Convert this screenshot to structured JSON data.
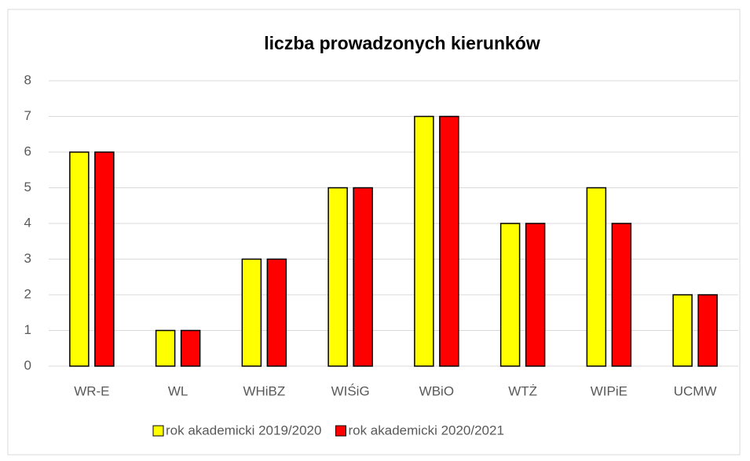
{
  "chart_data": {
    "type": "bar",
    "title": "liczba prowadzonych kierunków",
    "categories": [
      "WR-E",
      "WL",
      "WHiBZ",
      "WIŚiG",
      "WBiO",
      "WTŻ",
      "WIPiE",
      "UCMW"
    ],
    "series": [
      {
        "name": "rok akademicki 2019/2020",
        "color": "#ffff00",
        "values": [
          6,
          1,
          3,
          5,
          7,
          4,
          5,
          2
        ]
      },
      {
        "name": "rok akademicki 2020/2021",
        "color": "#ff0000",
        "values": [
          6,
          1,
          3,
          5,
          7,
          4,
          4,
          2
        ]
      }
    ],
    "ylim": [
      0,
      8
    ],
    "yticks": [
      0,
      1,
      2,
      3,
      4,
      5,
      6,
      7,
      8
    ],
    "grid": true,
    "legend": "bottom"
  }
}
